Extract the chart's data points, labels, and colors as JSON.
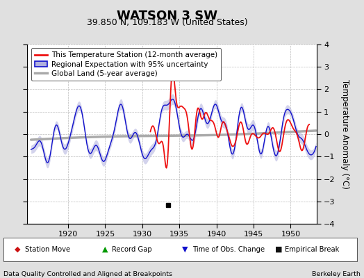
{
  "title": "WATSON 3 SW",
  "subtitle": "39.850 N, 109.183 W (United States)",
  "ylabel": "Temperature Anomaly (°C)",
  "xlabel_note": "Data Quality Controlled and Aligned at Breakpoints",
  "credit": "Berkeley Earth",
  "xlim": [
    1914.5,
    1953.5
  ],
  "ylim": [
    -4,
    4
  ],
  "yticks": [
    -4,
    -3,
    -2,
    -1,
    0,
    1,
    2,
    3,
    4
  ],
  "xticks": [
    1920,
    1925,
    1930,
    1935,
    1940,
    1945,
    1950
  ],
  "bg_color": "#e0e0e0",
  "plot_bg_color": "#ffffff",
  "grid_color": "#bbbbbb",
  "red_color": "#ee1111",
  "blue_color": "#1111cc",
  "blue_fill_color": "#b0b0dd",
  "gray_color": "#aaaaaa",
  "empirical_break_x": 1933.5,
  "empirical_break_y": -3.15,
  "title_fontsize": 13,
  "subtitle_fontsize": 9,
  "legend_fontsize": 7.5,
  "tick_fontsize": 8,
  "annot_fontsize": 7
}
